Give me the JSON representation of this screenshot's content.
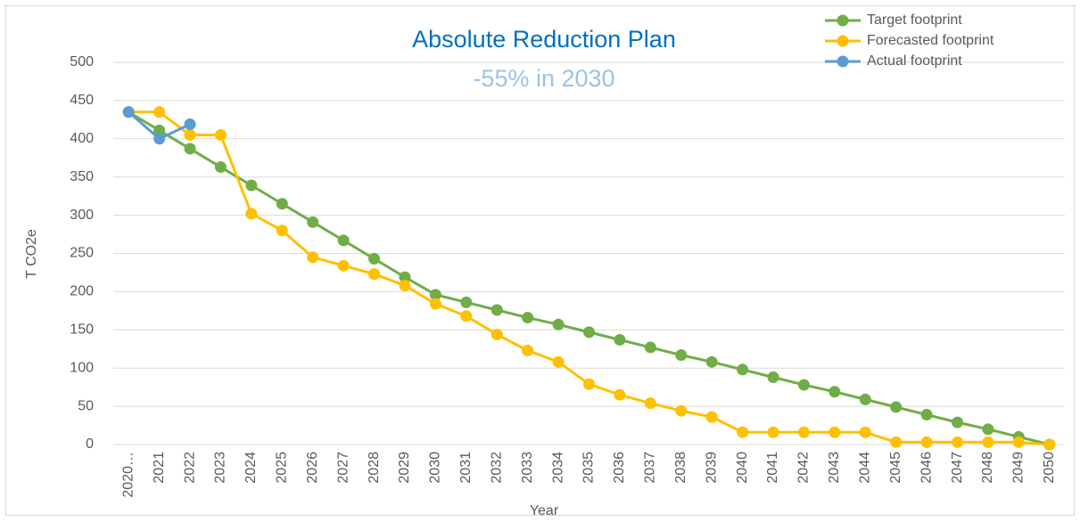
{
  "chart_data": {
    "type": "line",
    "title": "Absolute Reduction Plan",
    "subtitle": "-55% in 2030",
    "x_label": "Year",
    "y_label": "T CO2e",
    "categories": [
      "2020…",
      "2021",
      "2022",
      "2023",
      "2024",
      "2025",
      "2026",
      "2027",
      "2028",
      "2029",
      "2030",
      "2031",
      "2032",
      "2033",
      "2034",
      "2035",
      "2036",
      "2037",
      "2038",
      "2039",
      "2040",
      "2041",
      "2042",
      "2043",
      "2044",
      "2045",
      "2046",
      "2047",
      "2048",
      "2049",
      "2050"
    ],
    "series": [
      {
        "name": "Target footprint",
        "color": "#70ad47",
        "values": [
          435,
          411,
          387,
          363,
          339,
          315,
          291,
          267,
          243,
          219,
          196,
          186,
          176,
          166,
          157,
          147,
          137,
          127,
          117,
          108,
          98,
          88,
          78,
          69,
          59,
          49,
          39,
          29,
          20,
          10,
          0
        ]
      },
      {
        "name": "Forecasted footprint",
        "color": "#ffc000",
        "values": [
          435,
          435,
          405,
          405,
          302,
          280,
          245,
          234,
          223,
          208,
          184,
          168,
          144,
          123,
          108,
          79,
          65,
          54,
          44,
          36,
          16,
          16,
          16,
          16,
          16,
          3,
          3,
          3,
          3,
          3,
          0
        ]
      },
      {
        "name": "Actual footprint",
        "color": "#5b9bd5",
        "values": [
          435,
          400,
          419,
          null,
          null,
          null,
          null,
          null,
          null,
          null,
          null,
          null,
          null,
          null,
          null,
          null,
          null,
          null,
          null,
          null,
          null,
          null,
          null,
          null,
          null,
          null,
          null,
          null,
          null,
          null,
          null
        ]
      }
    ],
    "ylim": [
      0,
      500
    ],
    "yticks": [
      0,
      50,
      100,
      150,
      200,
      250,
      300,
      350,
      400,
      450,
      500
    ],
    "grid": true,
    "legend": "top-right"
  }
}
